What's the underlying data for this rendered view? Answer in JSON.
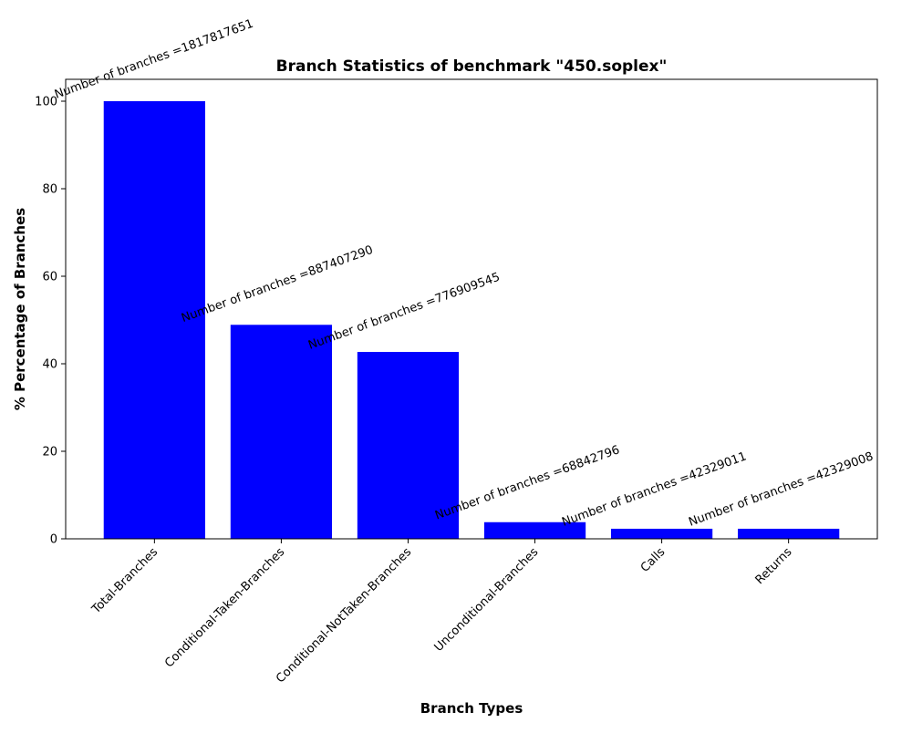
{
  "chart_data": {
    "type": "bar",
    "title": "Branch Statistics of benchmark \"450.soplex\"",
    "xlabel": "Branch Types",
    "ylabel": "% Percentage of Branches",
    "categories": [
      "Total-Branches",
      "Conditional-Taken-Branches",
      "Conditional-NotTaken-Branches",
      "Unconditional-Branches",
      "Calls",
      "Returns"
    ],
    "values": [
      100.0,
      48.9,
      42.7,
      3.8,
      2.3,
      2.3
    ],
    "data_labels": [
      "Number of branches =1817817651",
      "Number of branches =887407290",
      "Number of branches =776909545",
      "Number of branches =68842796",
      "Number of branches =42329011",
      "Number of branches =42329008"
    ],
    "ylim": [
      0,
      105
    ],
    "yticks": [
      0,
      20,
      40,
      60,
      80,
      100
    ],
    "bar_color": "#0000ff",
    "grid": false,
    "legend": "none"
  }
}
